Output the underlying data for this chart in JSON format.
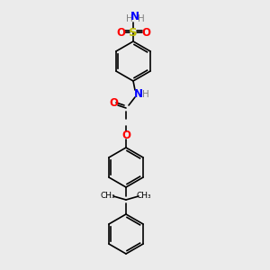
{
  "bg_color": "#ebebeb",
  "bond_color": "#000000",
  "lw": 1.2,
  "atom_colors": {
    "O": "#ff0000",
    "N": "#0000ff",
    "S": "#bbbb00",
    "H": "#808080",
    "C": "#000000"
  },
  "font_size": 7.5,
  "fig_size": [
    3.0,
    3.0
  ],
  "dpi": 100
}
